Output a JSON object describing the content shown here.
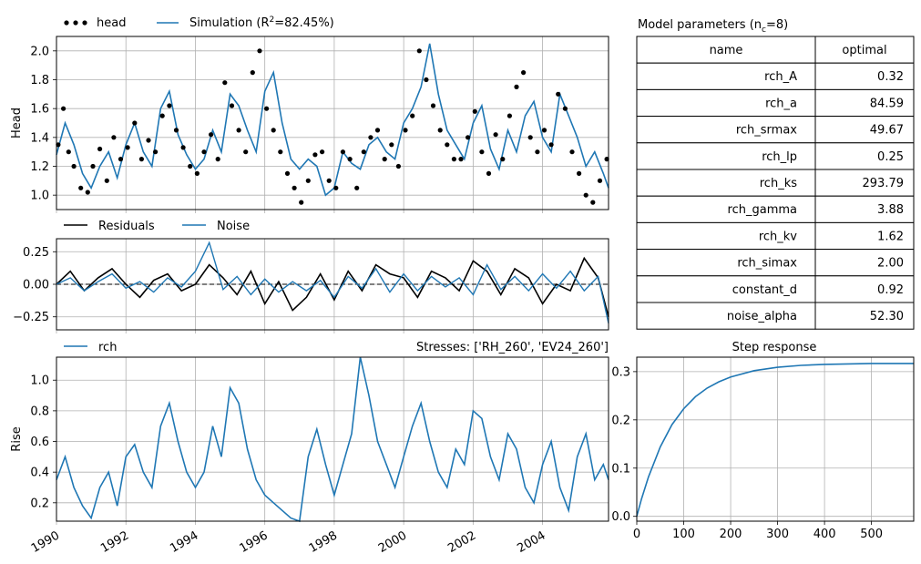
{
  "colors": {
    "blue": "#1f77b4",
    "black": "#000000",
    "grid": "#b0b0b0"
  },
  "legend": {
    "head_label": "head",
    "simulation_prefix": "Simulation (R",
    "simulation_suffix": "=82.45%)",
    "residuals_label": "Residuals",
    "noise_label": "Noise",
    "rch_label": "rch"
  },
  "stresses_label": "Stresses: ['RH_260', 'EV24_260']",
  "table": {
    "title_prefix": "Model parameters (n",
    "title_subscript": "c",
    "title_suffix": "=8)",
    "columns": [
      "name",
      "optimal"
    ],
    "rows": [
      {
        "name": "rch_A",
        "optimal": "0.32"
      },
      {
        "name": "rch_a",
        "optimal": "84.59"
      },
      {
        "name": "rch_srmax",
        "optimal": "49.67"
      },
      {
        "name": "rch_lp",
        "optimal": "0.25"
      },
      {
        "name": "rch_ks",
        "optimal": "293.79"
      },
      {
        "name": "rch_gamma",
        "optimal": "3.88"
      },
      {
        "name": "rch_kv",
        "optimal": "1.62"
      },
      {
        "name": "rch_simax",
        "optimal": "2.00"
      },
      {
        "name": "constant_d",
        "optimal": "0.92"
      },
      {
        "name": "noise_alpha",
        "optimal": "52.30"
      }
    ]
  },
  "chart_data": [
    {
      "type": "line",
      "panel": "head",
      "ylabel": "Head",
      "xlim": [
        1990.0,
        2005.9
      ],
      "ylim": [
        0.9,
        2.1
      ],
      "yticks": [
        "1.0",
        "1.2",
        "1.4",
        "1.6",
        "1.8",
        "2.0"
      ],
      "series": [
        {
          "name": "Simulation",
          "x": [
            1990.0,
            1990.25,
            1990.5,
            1990.75,
            1991.0,
            1991.25,
            1991.5,
            1991.75,
            1992.0,
            1992.25,
            1992.5,
            1992.75,
            1993.0,
            1993.25,
            1993.5,
            1993.75,
            1994.0,
            1994.25,
            1994.5,
            1994.75,
            1995.0,
            1995.25,
            1995.5,
            1995.75,
            1996.0,
            1996.25,
            1996.5,
            1996.75,
            1997.0,
            1997.25,
            1997.5,
            1997.75,
            1998.0,
            1998.25,
            1998.5,
            1998.75,
            1999.0,
            1999.25,
            1999.5,
            1999.75,
            2000.0,
            2000.25,
            2000.5,
            2000.75,
            2001.0,
            2001.25,
            2001.5,
            2001.75,
            2002.0,
            2002.25,
            2002.5,
            2002.75,
            2003.0,
            2003.25,
            2003.5,
            2003.75,
            2004.0,
            2004.25,
            2004.5,
            2004.75,
            2005.0,
            2005.25,
            2005.5,
            2005.75,
            2005.9
          ],
          "y": [
            1.28,
            1.5,
            1.35,
            1.15,
            1.05,
            1.2,
            1.3,
            1.12,
            1.35,
            1.5,
            1.3,
            1.2,
            1.6,
            1.72,
            1.42,
            1.28,
            1.18,
            1.25,
            1.45,
            1.3,
            1.7,
            1.62,
            1.45,
            1.3,
            1.72,
            1.85,
            1.5,
            1.25,
            1.18,
            1.25,
            1.2,
            1.0,
            1.05,
            1.3,
            1.22,
            1.18,
            1.35,
            1.4,
            1.3,
            1.25,
            1.5,
            1.6,
            1.75,
            2.05,
            1.7,
            1.45,
            1.35,
            1.25,
            1.5,
            1.62,
            1.32,
            1.18,
            1.45,
            1.3,
            1.55,
            1.65,
            1.4,
            1.3,
            1.7,
            1.55,
            1.4,
            1.2,
            1.3,
            1.15,
            1.05
          ]
        },
        {
          "name": "head",
          "x": [
            1990.05,
            1990.2,
            1990.35,
            1990.5,
            1990.7,
            1990.9,
            1991.05,
            1991.25,
            1991.45,
            1991.65,
            1991.85,
            1992.05,
            1992.25,
            1992.45,
            1992.65,
            1992.85,
            1993.05,
            1993.25,
            1993.45,
            1993.65,
            1993.85,
            1994.05,
            1994.25,
            1994.45,
            1994.65,
            1994.85,
            1995.05,
            1995.25,
            1995.45,
            1995.65,
            1995.85,
            1996.05,
            1996.25,
            1996.45,
            1996.65,
            1996.85,
            1997.05,
            1997.25,
            1997.45,
            1997.65,
            1997.85,
            1998.05,
            1998.25,
            1998.45,
            1998.65,
            1998.85,
            1999.05,
            1999.25,
            1999.45,
            1999.65,
            1999.85,
            2000.05,
            2000.25,
            2000.45,
            2000.65,
            2000.85,
            2001.05,
            2001.25,
            2001.45,
            2001.65,
            2001.85,
            2002.05,
            2002.25,
            2002.45,
            2002.65,
            2002.85,
            2003.05,
            2003.25,
            2003.45,
            2003.65,
            2003.85,
            2004.05,
            2004.25,
            2004.45,
            2004.65,
            2004.85,
            2005.05,
            2005.25,
            2005.45,
            2005.65,
            2005.85
          ],
          "y": [
            1.35,
            1.6,
            1.3,
            1.2,
            1.05,
            1.02,
            1.2,
            1.32,
            1.1,
            1.4,
            1.25,
            1.33,
            1.5,
            1.25,
            1.38,
            1.3,
            1.55,
            1.62,
            1.45,
            1.33,
            1.2,
            1.15,
            1.3,
            1.42,
            1.25,
            1.78,
            1.62,
            1.45,
            1.3,
            1.85,
            2.0,
            1.6,
            1.45,
            1.3,
            1.15,
            1.05,
            0.95,
            1.1,
            1.28,
            1.3,
            1.1,
            1.05,
            1.3,
            1.25,
            1.05,
            1.3,
            1.4,
            1.45,
            1.25,
            1.35,
            1.2,
            1.45,
            1.55,
            2.0,
            1.8,
            1.62,
            1.45,
            1.35,
            1.25,
            1.25,
            1.4,
            1.58,
            1.3,
            1.15,
            1.42,
            1.25,
            1.55,
            1.75,
            1.85,
            1.4,
            1.3,
            1.45,
            1.35,
            1.7,
            1.6,
            1.3,
            1.15,
            1.0,
            0.95,
            1.1,
            1.25
          ]
        }
      ]
    },
    {
      "type": "line",
      "panel": "residuals",
      "xlim": [
        1990.0,
        2005.9
      ],
      "ylim": [
        -0.35,
        0.35
      ],
      "yticks": [
        "0.25",
        "0.00",
        "−0.25"
      ],
      "series": [
        {
          "name": "Residuals",
          "x": [
            1990.0,
            1990.4,
            1990.8,
            1991.2,
            1991.6,
            1992.0,
            1992.4,
            1992.8,
            1993.2,
            1993.6,
            1994.0,
            1994.4,
            1994.8,
            1995.2,
            1995.6,
            1996.0,
            1996.4,
            1996.8,
            1997.2,
            1997.6,
            1998.0,
            1998.4,
            1998.8,
            1999.2,
            1999.6,
            2000.0,
            2000.4,
            2000.8,
            2001.2,
            2001.6,
            2002.0,
            2002.4,
            2002.8,
            2003.2,
            2003.6,
            2004.0,
            2004.4,
            2004.8,
            2005.2,
            2005.6,
            2005.9
          ],
          "y": [
            0.0,
            0.1,
            -0.05,
            0.05,
            0.12,
            0.0,
            -0.1,
            0.03,
            0.08,
            -0.05,
            0.0,
            0.15,
            0.05,
            -0.08,
            0.1,
            -0.15,
            0.02,
            -0.2,
            -0.1,
            0.08,
            -0.12,
            0.1,
            -0.05,
            0.15,
            0.08,
            0.05,
            -0.1,
            0.1,
            0.05,
            -0.05,
            0.18,
            0.1,
            -0.08,
            0.12,
            0.05,
            -0.15,
            0.0,
            -0.05,
            0.2,
            0.05,
            -0.25
          ]
        },
        {
          "name": "Noise",
          "x": [
            1990.0,
            1990.4,
            1990.8,
            1991.2,
            1991.6,
            1992.0,
            1992.4,
            1992.8,
            1993.2,
            1993.6,
            1994.0,
            1994.4,
            1994.8,
            1995.2,
            1995.6,
            1996.0,
            1996.4,
            1996.8,
            1997.2,
            1997.6,
            1998.0,
            1998.4,
            1998.8,
            1999.2,
            1999.6,
            2000.0,
            2000.4,
            2000.8,
            2001.2,
            2001.6,
            2002.0,
            2002.4,
            2002.8,
            2003.2,
            2003.6,
            2004.0,
            2004.4,
            2004.8,
            2005.2,
            2005.6,
            2005.9
          ],
          "y": [
            0.0,
            0.05,
            -0.05,
            0.02,
            0.08,
            -0.03,
            0.02,
            -0.06,
            0.05,
            -0.02,
            0.1,
            0.32,
            -0.04,
            0.06,
            -0.08,
            0.04,
            -0.06,
            0.02,
            -0.05,
            0.03,
            -0.1,
            0.06,
            -0.03,
            0.12,
            -0.06,
            0.08,
            -0.05,
            0.06,
            -0.02,
            0.05,
            -0.08,
            0.15,
            -0.04,
            0.06,
            -0.05,
            0.08,
            -0.03,
            0.1,
            -0.05,
            0.06,
            -0.3
          ]
        }
      ]
    },
    {
      "type": "line",
      "panel": "contribution",
      "ylabel": "Rise",
      "xlim": [
        1990.0,
        2005.9
      ],
      "ylim": [
        0.08,
        1.15
      ],
      "yticks": [
        "0.2",
        "0.4",
        "0.6",
        "0.8",
        "1.0"
      ],
      "xticks": [
        "1990",
        "1992",
        "1994",
        "1996",
        "1998",
        "2000",
        "2002",
        "2004"
      ],
      "series": [
        {
          "name": "rch",
          "x": [
            1990.0,
            1990.25,
            1990.5,
            1990.75,
            1991.0,
            1991.25,
            1991.5,
            1991.75,
            1992.0,
            1992.25,
            1992.5,
            1992.75,
            1993.0,
            1993.25,
            1993.5,
            1993.75,
            1994.0,
            1994.25,
            1994.5,
            1994.75,
            1995.0,
            1995.25,
            1995.5,
            1995.75,
            1996.0,
            1996.25,
            1996.5,
            1996.75,
            1997.0,
            1997.25,
            1997.5,
            1997.75,
            1998.0,
            1998.25,
            1998.5,
            1998.75,
            1999.0,
            1999.25,
            1999.5,
            1999.75,
            2000.0,
            2000.25,
            2000.5,
            2000.75,
            2001.0,
            2001.25,
            2001.5,
            2001.75,
            2002.0,
            2002.25,
            2002.5,
            2002.75,
            2003.0,
            2003.25,
            2003.5,
            2003.75,
            2004.0,
            2004.25,
            2004.5,
            2004.75,
            2005.0,
            2005.25,
            2005.5,
            2005.75,
            2005.9
          ],
          "y": [
            0.35,
            0.5,
            0.3,
            0.18,
            0.1,
            0.3,
            0.4,
            0.18,
            0.5,
            0.58,
            0.4,
            0.3,
            0.7,
            0.85,
            0.6,
            0.4,
            0.3,
            0.4,
            0.7,
            0.5,
            0.95,
            0.85,
            0.55,
            0.35,
            0.25,
            0.2,
            0.15,
            0.1,
            0.08,
            0.5,
            0.68,
            0.45,
            0.25,
            0.45,
            0.65,
            1.15,
            0.9,
            0.6,
            0.45,
            0.3,
            0.5,
            0.7,
            0.85,
            0.6,
            0.4,
            0.3,
            0.55,
            0.45,
            0.8,
            0.75,
            0.5,
            0.35,
            0.65,
            0.55,
            0.3,
            0.2,
            0.45,
            0.6,
            0.3,
            0.15,
            0.5,
            0.65,
            0.35,
            0.45,
            0.35
          ]
        }
      ]
    },
    {
      "type": "line",
      "panel": "step",
      "title": "Step response",
      "xlim": [
        0,
        590
      ],
      "ylim": [
        -0.01,
        0.33
      ],
      "xticks": [
        "0",
        "100",
        "200",
        "300",
        "400",
        "500"
      ],
      "yticks": [
        "0.0",
        "0.1",
        "0.2",
        "0.3"
      ],
      "series": [
        {
          "name": "rch",
          "x": [
            0,
            10,
            25,
            50,
            75,
            100,
            125,
            150,
            175,
            200,
            250,
            300,
            350,
            400,
            450,
            500,
            550,
            590
          ],
          "y": [
            0.0,
            0.036,
            0.082,
            0.144,
            0.19,
            0.223,
            0.248,
            0.266,
            0.279,
            0.289,
            0.302,
            0.309,
            0.313,
            0.315,
            0.316,
            0.317,
            0.317,
            0.317
          ]
        }
      ]
    }
  ]
}
